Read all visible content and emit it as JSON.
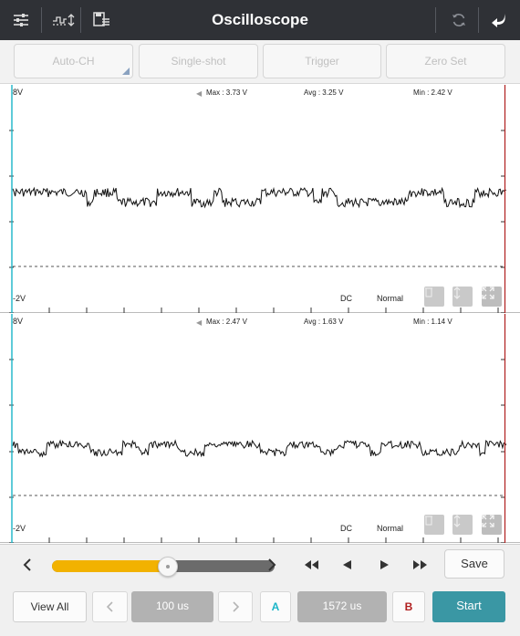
{
  "title": "Oscilloscope",
  "toolbar": {
    "left_icons": [
      "sliders-icon",
      "waveform-settings-icon",
      "save-file-icon"
    ],
    "right_icons": [
      "refresh-icon",
      "back-icon"
    ]
  },
  "modes": {
    "auto_ch": "Auto-CH",
    "single_shot": "Single-shot",
    "trigger": "Trigger",
    "zero_set": "Zero Set"
  },
  "channels": [
    {
      "top_label": "8V",
      "bottom_label": "-2V",
      "max": "Max : 3.73 V",
      "avg": "Avg : 3.25 V",
      "min": "Min : 2.42 V",
      "coupling": "DC",
      "mode": "Normal"
    },
    {
      "top_label": "8V",
      "bottom_label": "-2V",
      "max": "Max : 2.47 V",
      "avg": "Avg : 1.63 V",
      "min": "Min : 1.14 V",
      "coupling": "DC",
      "mode": "Normal"
    }
  ],
  "slider": {
    "position": 0.52
  },
  "controls": {
    "save": "Save",
    "view_all": "View All",
    "timebase": "100 us",
    "cursor_a": "A",
    "cursor_delta": "1572 us",
    "cursor_b": "B",
    "start": "Start"
  },
  "colors": {
    "titlebar": "#2f3136",
    "start": "#3a97a4",
    "slider_fill": "#f2b200",
    "cursor_a": "#1ab5c8",
    "cursor_b": "#b01e1e"
  }
}
